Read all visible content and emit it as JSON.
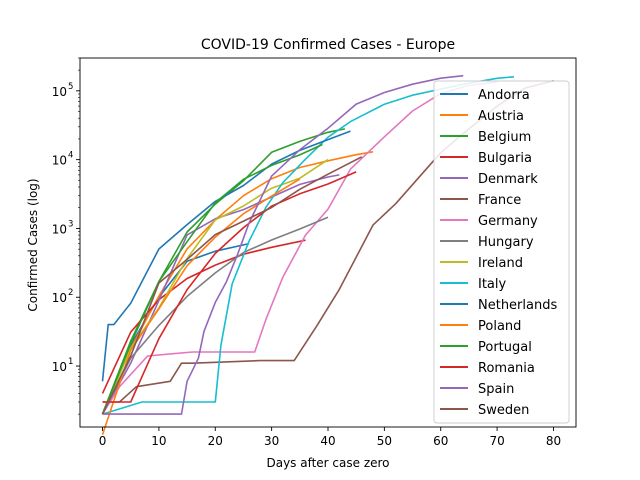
{
  "chart_data": {
    "type": "line",
    "title": "COVID-19 Confirmed Cases - Europe",
    "xlabel": "Days after case zero",
    "ylabel": "Confirmed Cases (log)",
    "xlim": [
      -4,
      84
    ],
    "ylim": [
      1.3,
      300000
    ],
    "yscale": "log",
    "grid": false,
    "legend_position": "right",
    "x_ticks": [
      0,
      10,
      20,
      30,
      40,
      50,
      60,
      70,
      80
    ],
    "x_tick_labels": [
      "0",
      "10",
      "20",
      "30",
      "40",
      "50",
      "60",
      "70",
      "80"
    ],
    "y_ticks": [
      10,
      100,
      1000,
      10000,
      100000
    ],
    "y_tick_labels": [
      {
        "base": "10",
        "exp": "1"
      },
      {
        "base": "10",
        "exp": "2"
      },
      {
        "base": "10",
        "exp": "3"
      },
      {
        "base": "10",
        "exp": "4"
      },
      {
        "base": "10",
        "exp": "5"
      }
    ],
    "series": [
      {
        "name": "Andorra",
        "color": "#1f77b4",
        "x": [
          0,
          5,
          10,
          15,
          20,
          26
        ],
        "y": [
          2,
          20,
          100,
          334,
          466,
          601
        ]
      },
      {
        "name": "Austria",
        "color": "#ff7f0e",
        "x": [
          0,
          5,
          10,
          15,
          20,
          25,
          30,
          35,
          40,
          45,
          48
        ],
        "y": [
          2,
          18,
          104,
          504,
          1332,
          2992,
          5282,
          7697,
          9618,
          11781,
          13000
        ]
      },
      {
        "name": "Belgium",
        "color": "#2ca02c",
        "x": [
          0,
          5,
          10,
          15,
          20,
          25,
          30,
          35,
          40,
          43
        ],
        "y": [
          2,
          23,
          169,
          886,
          2257,
          4937,
          12775,
          18431,
          24983,
          28000
        ]
      },
      {
        "name": "Bulgaria",
        "color": "#d62728",
        "x": [
          0,
          5,
          10,
          15,
          20,
          25,
          30,
          36
        ],
        "y": [
          4,
          31,
          92,
          187,
          293,
          422,
          531,
          675
        ]
      },
      {
        "name": "Denmark",
        "color": "#9467bd",
        "x": [
          0,
          5,
          10,
          15,
          20,
          25,
          30,
          35,
          40,
          42
        ],
        "y": [
          2,
          11,
          90,
          806,
          1380,
          1877,
          2860,
          4369,
          5597,
          6000
        ]
      },
      {
        "name": "France",
        "color": "#8c564b",
        "x": [
          0,
          3,
          6,
          12,
          14,
          16,
          28,
          34,
          38,
          42,
          48,
          52,
          56,
          60,
          64,
          70,
          75,
          80
        ],
        "y": [
          3,
          3,
          5,
          6,
          11,
          11,
          12,
          12,
          38,
          130,
          1126,
          2281,
          5380,
          12612,
          24000,
          60000,
          110000,
          140000
        ]
      },
      {
        "name": "Germany",
        "color": "#e377c2",
        "x": [
          0,
          3,
          8,
          12,
          16,
          22,
          25,
          27,
          29,
          32,
          36,
          40,
          44,
          50,
          55,
          60,
          65,
          70
        ],
        "y": [
          2,
          5,
          14,
          15,
          16,
          16,
          16,
          16,
          48,
          196,
          799,
          1908,
          7272,
          21463,
          50871,
          91159,
          120000,
          135000
        ]
      },
      {
        "name": "Hungary",
        "color": "#7f7f7f",
        "x": [
          0,
          5,
          10,
          15,
          20,
          25,
          30,
          35,
          40
        ],
        "y": [
          2,
          13,
          39,
          103,
          226,
          447,
          678,
          980,
          1458
        ]
      },
      {
        "name": "Ireland",
        "color": "#bcbd22",
        "x": [
          0,
          5,
          10,
          15,
          20,
          25,
          30,
          35,
          40
        ],
        "y": [
          2,
          18,
          70,
          366,
          1329,
          2121,
          3849,
          5364,
          10000
        ]
      },
      {
        "name": "Italy",
        "color": "#17becf",
        "x": [
          0,
          7,
          20,
          21,
          23,
          26,
          29,
          32,
          36,
          40,
          44,
          50,
          55,
          60,
          65,
          70,
          73
        ],
        "y": [
          2,
          3,
          3,
          20,
          157,
          655,
          2036,
          4636,
          10149,
          21157,
          35713,
          63927,
          86498,
          105792,
          128948,
          152271,
          160000
        ]
      },
      {
        "name": "Netherlands",
        "color": "#1f77b4",
        "x": [
          0,
          1,
          2,
          5,
          10,
          15,
          20,
          25,
          30,
          35,
          40,
          44
        ],
        "y": [
          6,
          40,
          40,
          82,
          503,
          1135,
          2467,
          4204,
          8603,
          13614,
          19580,
          26000
        ]
      },
      {
        "name": "Poland",
        "color": "#ff7f0e",
        "x": [
          0,
          5,
          10,
          15,
          20,
          25,
          30,
          35
        ],
        "y": [
          1,
          17,
          68,
          287,
          749,
          1638,
          2946,
          5205
        ]
      },
      {
        "name": "Portugal",
        "color": "#2ca02c",
        "x": [
          0,
          5,
          10,
          15,
          20,
          25,
          30,
          35,
          39
        ],
        "y": [
          2,
          21,
          169,
          642,
          2362,
          5170,
          8251,
          11730,
          16585
        ]
      },
      {
        "name": "Romania",
        "color": "#d62728",
        "x": [
          0,
          5,
          10,
          15,
          20,
          25,
          30,
          35,
          40,
          45
        ],
        "y": [
          3,
          3,
          25,
          129,
          433,
          1029,
          2109,
          3183,
          4417,
          6633
        ]
      },
      {
        "name": "Spain",
        "color": "#9467bd",
        "x": [
          0,
          5,
          10,
          14,
          15,
          17,
          18,
          20,
          22,
          24,
          26,
          30,
          35,
          40,
          45,
          50,
          55,
          60,
          64
        ],
        "y": [
          2,
          2,
          2,
          2,
          6,
          13,
          32,
          84,
          169,
          428,
          1204,
          5753,
          13910,
          28603,
          64059,
          94417,
          124736,
          152446,
          166000
        ]
      },
      {
        "name": "Sweden",
        "color": "#8c564b",
        "x": [
          0,
          5,
          10,
          15,
          20,
          25,
          30,
          35,
          40,
          46
        ],
        "y": [
          2,
          14,
          161,
          355,
          814,
          1279,
          2016,
          3700,
          6131,
          11000
        ]
      }
    ]
  }
}
